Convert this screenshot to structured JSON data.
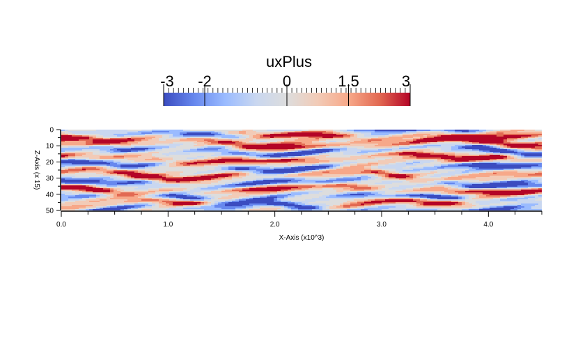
{
  "colorbar": {
    "title": "uxPlus",
    "ticks": [
      {
        "label": "-3",
        "value": -3
      },
      {
        "label": "-2",
        "value": -2
      },
      {
        "label": "0",
        "value": 0
      },
      {
        "label": "1.5",
        "value": 1.5
      },
      {
        "label": "3",
        "value": 3
      }
    ],
    "range": [
      -3,
      3
    ],
    "colormap": [
      "#3b4cc0",
      "#6788ee",
      "#9abbff",
      "#c9d7f0",
      "#dddddd",
      "#f2cbb7",
      "#f7a889",
      "#e26952",
      "#b40426"
    ]
  },
  "chart_data": {
    "type": "heatmap",
    "title": "",
    "variable": "uxPlus",
    "xlabel": "X-Axis (x10^3)",
    "ylabel": "Z-Axis (x 15)",
    "xlim": [
      0.0,
      4.5
    ],
    "ylim": [
      0,
      50
    ],
    "y_inverted": true,
    "x_ticks": [
      "0.0",
      "1.0",
      "2.0",
      "3.0",
      "4.0"
    ],
    "x_tick_values": [
      0.0,
      1.0,
      2.0,
      3.0,
      4.0
    ],
    "y_ticks": [
      "0",
      "10",
      "20",
      "30",
      "40",
      "50"
    ],
    "y_tick_values": [
      0,
      10,
      20,
      30,
      40,
      50
    ],
    "value_range": [
      -3,
      3
    ],
    "pattern": "streamwise-elongated streaks of alternating positive and negative velocity fluctuation",
    "streaks": [
      {
        "z": 1,
        "sign": -1
      },
      {
        "z": 4,
        "sign": 1
      },
      {
        "z": 9,
        "sign": 1
      },
      {
        "z": 13,
        "sign": -1
      },
      {
        "z": 18,
        "sign": 1
      },
      {
        "z": 23,
        "sign": -1
      },
      {
        "z": 28,
        "sign": 1
      },
      {
        "z": 33,
        "sign": -1
      },
      {
        "z": 37,
        "sign": 1
      },
      {
        "z": 42,
        "sign": -1
      },
      {
        "z": 46,
        "sign": 1
      },
      {
        "z": 49,
        "sign": -1
      }
    ]
  }
}
